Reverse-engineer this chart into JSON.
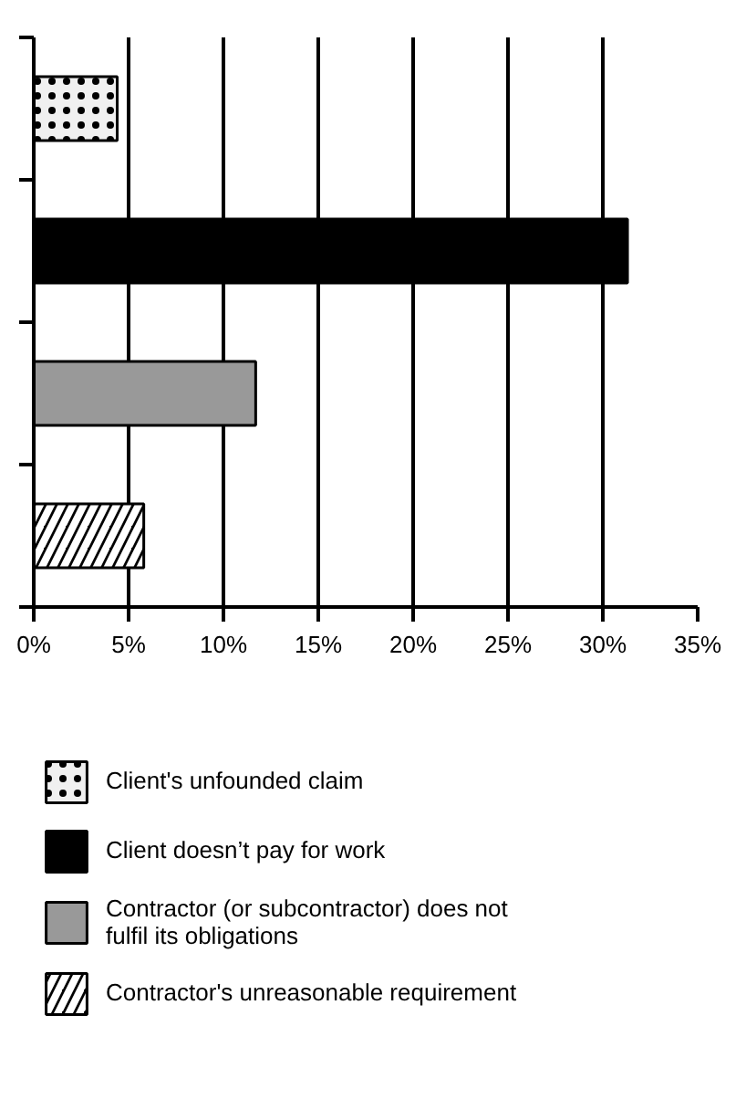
{
  "chart_data": {
    "type": "bar",
    "orientation": "horizontal",
    "categories": [
      null,
      null,
      null,
      null
    ],
    "series": [
      {
        "name": "Client's unfounded claim",
        "color": "#f0f0f0",
        "values": [
          4.4,
          null,
          null,
          null
        ]
      },
      {
        "name": "Client doesn’t pay for work",
        "color": "#000000",
        "values": [
          null,
          31.3,
          null,
          null
        ]
      },
      {
        "name": "Contractor (or subcontractor) does not fulfil its obligations",
        "color": "#999999",
        "values": [
          null,
          null,
          11.7,
          null
        ]
      },
      {
        "name": "Contractor's unreasonable requirement",
        "color": "#000000",
        "values": [
          null,
          null,
          null,
          5.8
        ]
      }
    ],
    "xlim": [
      0,
      35
    ],
    "xticks": [
      {
        "value": 0,
        "label": "0%"
      },
      {
        "value": 5,
        "label": "5%"
      },
      {
        "value": 10,
        "label": "10%"
      },
      {
        "value": 15,
        "label": "15%"
      },
      {
        "value": 20,
        "label": "20%"
      },
      {
        "value": 25,
        "label": "25%"
      },
      {
        "value": 30,
        "label": "30%"
      },
      {
        "value": 35,
        "label": "35%"
      }
    ],
    "grid": "x",
    "legend": "bottom"
  }
}
